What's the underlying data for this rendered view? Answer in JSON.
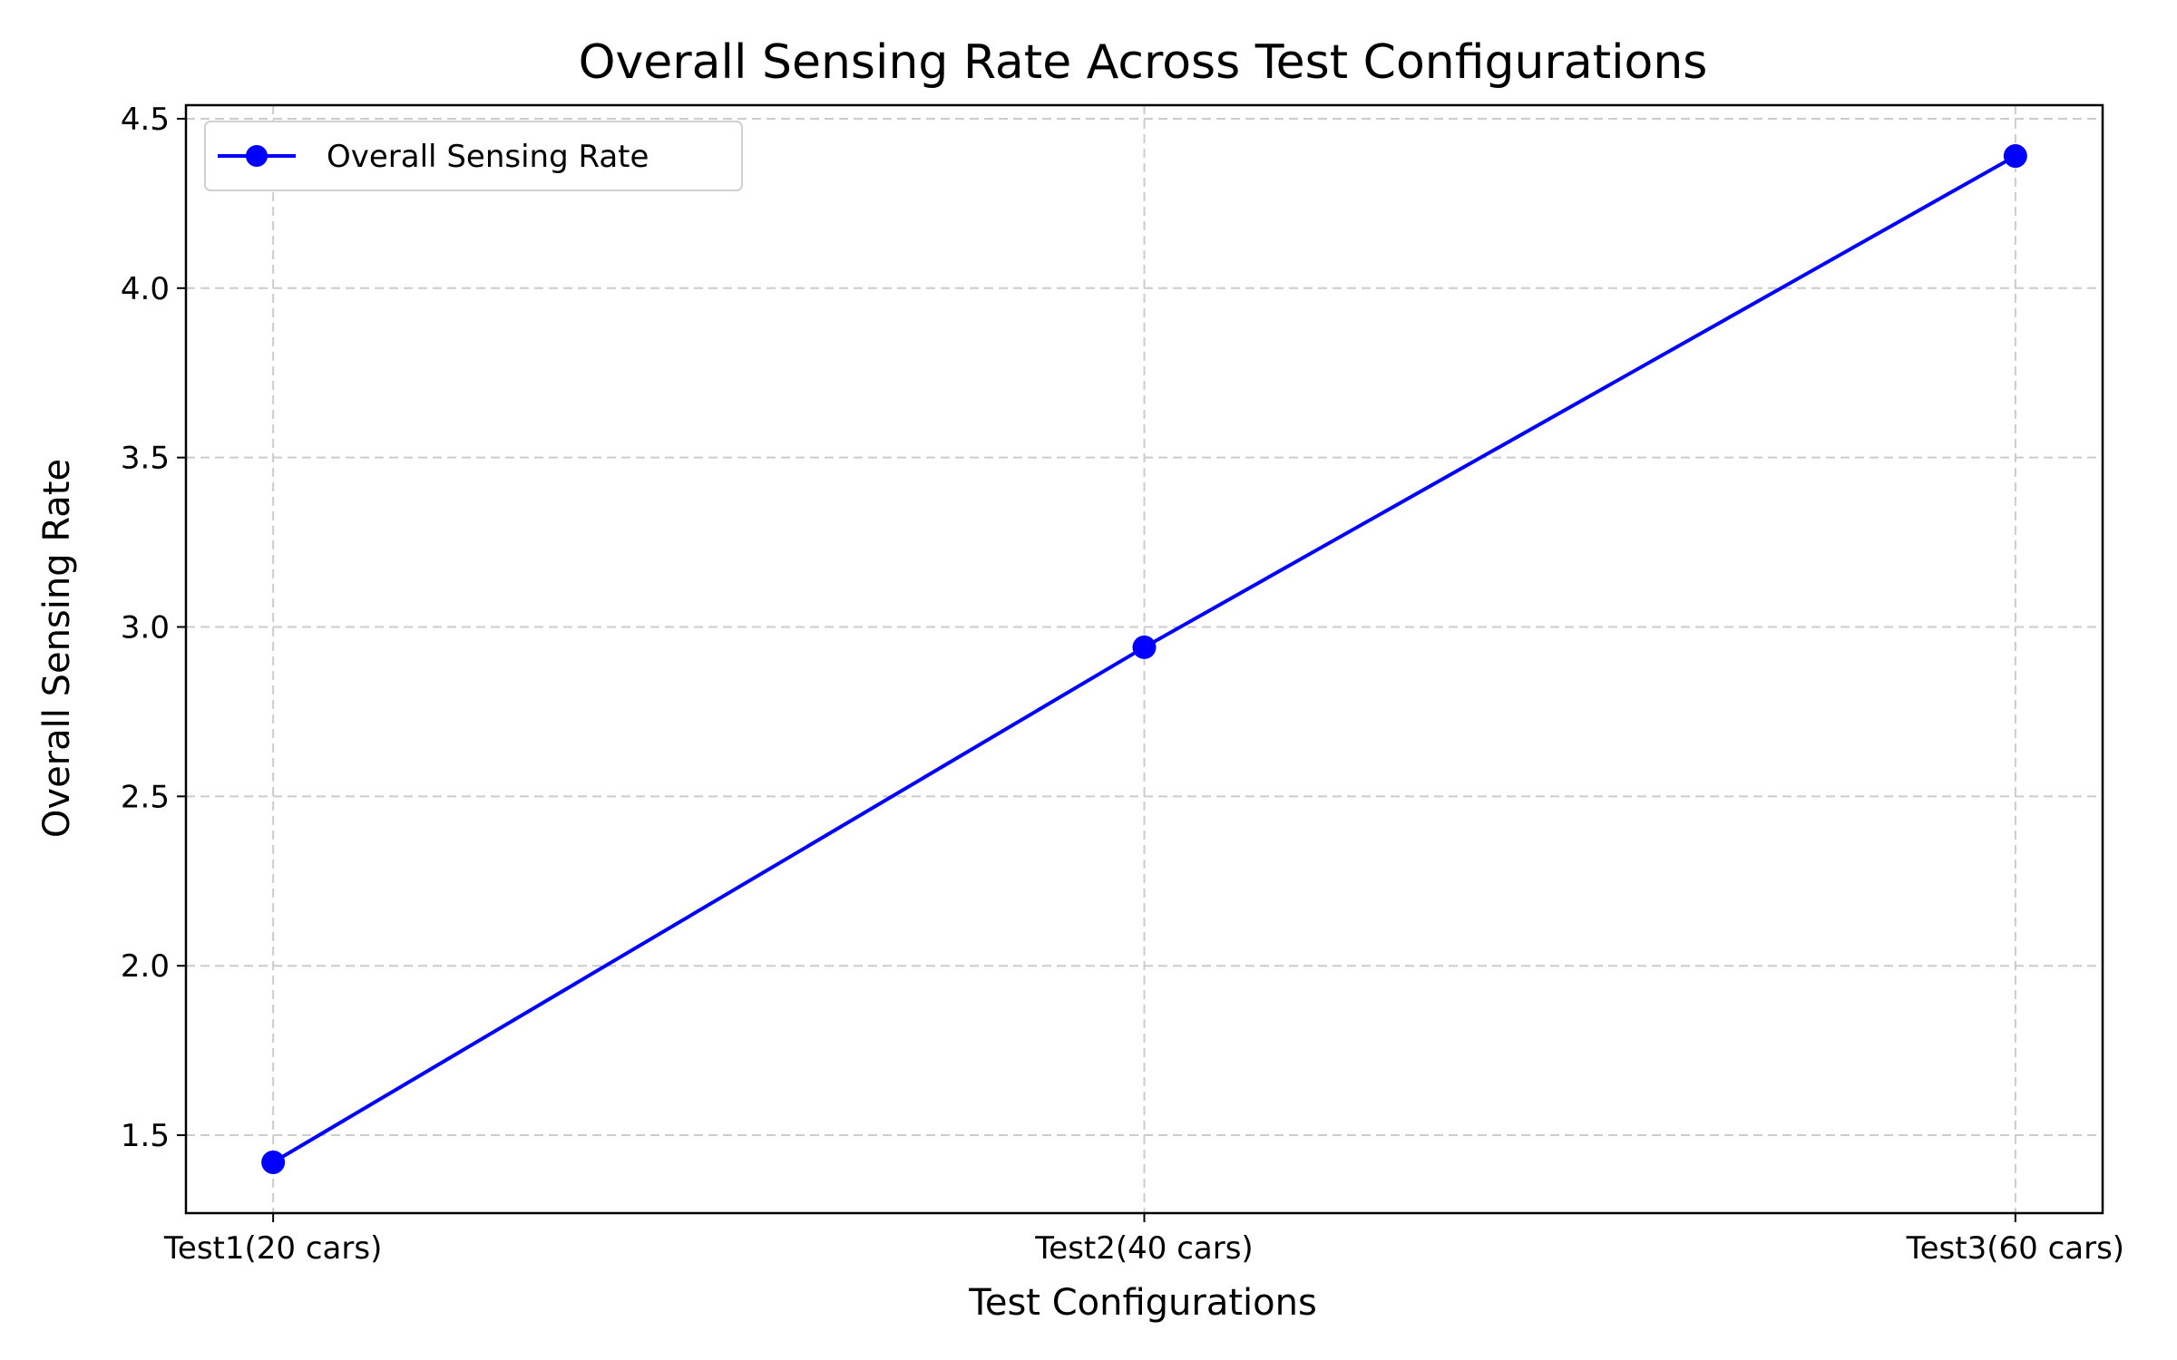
{
  "chart_data": {
    "type": "line",
    "title": "Overall Sensing Rate Across Test Configurations",
    "xlabel": "Test Configurations",
    "ylabel": "Overall Sensing Rate",
    "categories": [
      "Test1(20 cars)",
      "Test2(40 cars)",
      "Test3(60 cars)"
    ],
    "series": [
      {
        "name": "Overall Sensing Rate",
        "values": [
          1.42,
          2.94,
          4.39
        ],
        "color": "#0000ff",
        "marker": "circle"
      }
    ],
    "ylim": [
      1.27,
      4.54
    ],
    "yticks": [
      1.5,
      2.0,
      2.5,
      3.0,
      3.5,
      4.0,
      4.5
    ],
    "ytick_labels": [
      "1.5",
      "2.0",
      "2.5",
      "3.0",
      "3.5",
      "4.0",
      "4.5"
    ],
    "grid": true,
    "grid_style": "dashed",
    "grid_color": "#cccccc",
    "legend_position": "upper-left"
  }
}
